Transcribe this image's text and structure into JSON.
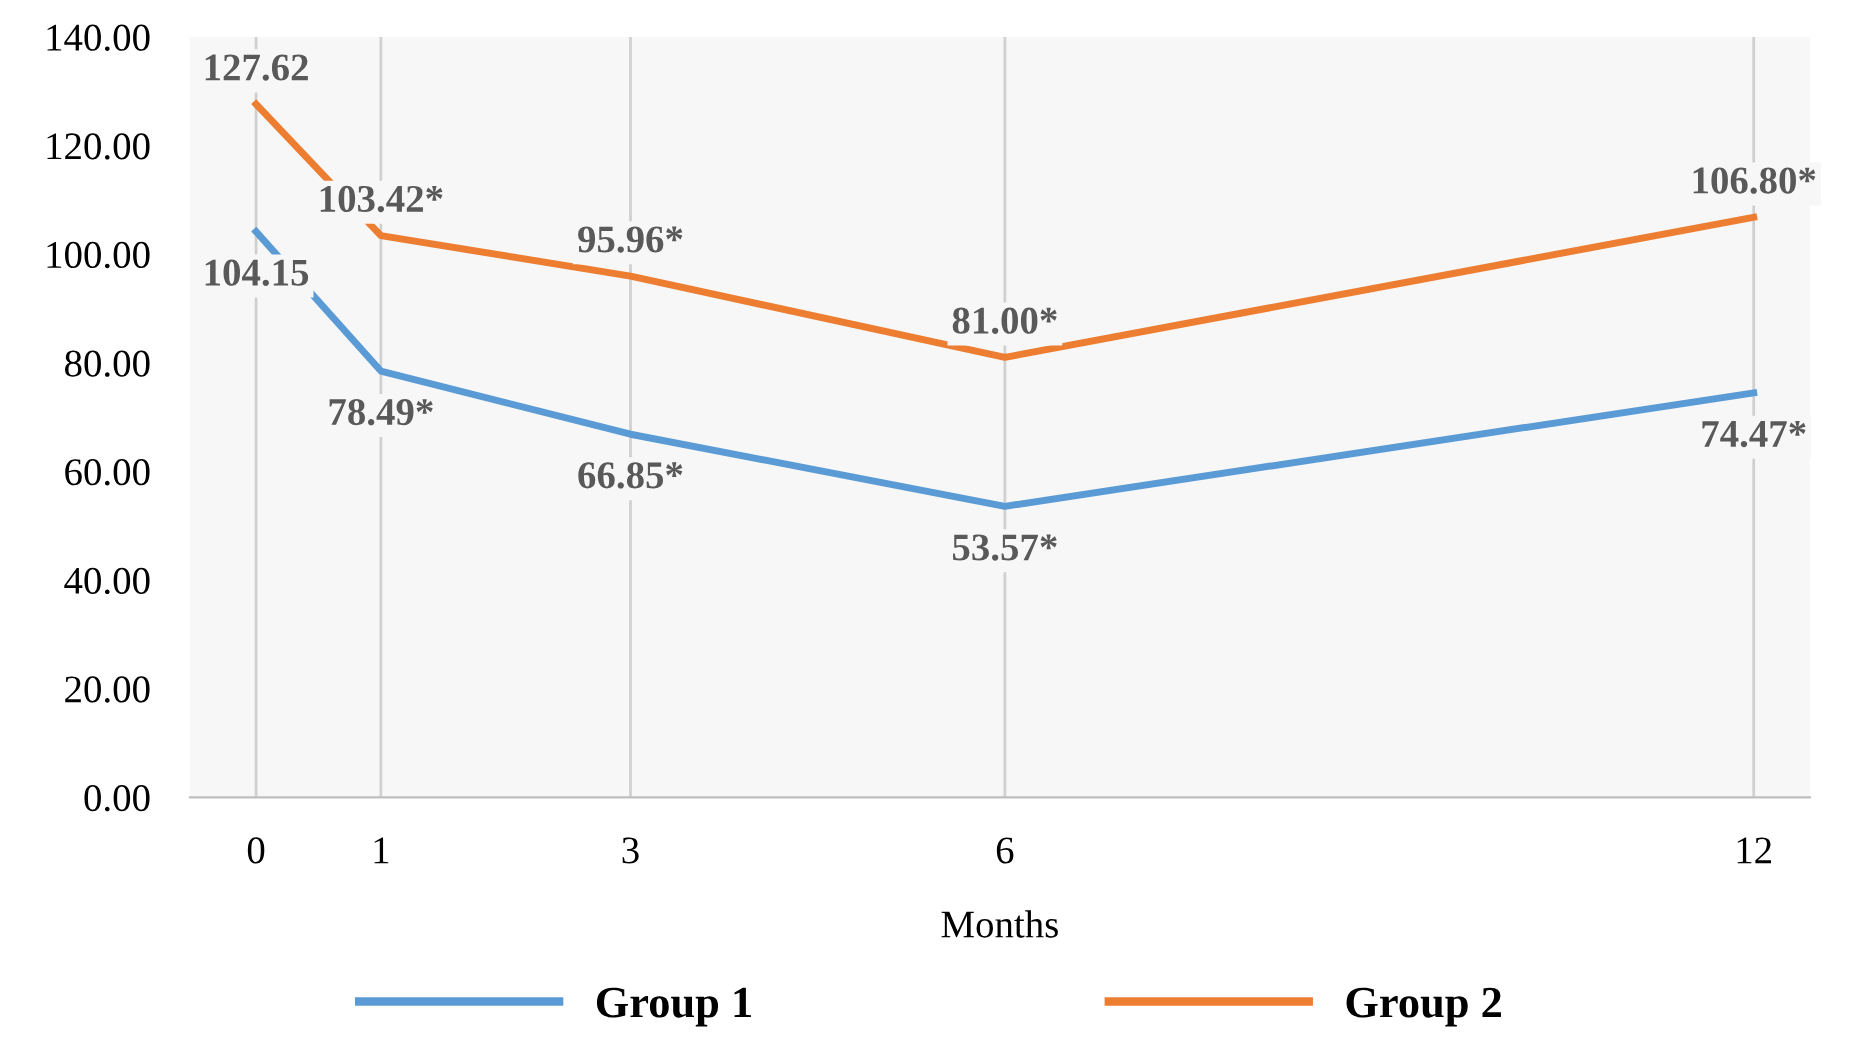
{
  "chart_data": {
    "type": "line",
    "xlabel": "Months",
    "x": [
      0,
      1,
      3,
      6,
      12
    ],
    "series": [
      {
        "name": "Group 1",
        "color": "#5b9bd5",
        "values": [
          104.15,
          78.49,
          66.85,
          53.57,
          74.47
        ],
        "value_labels": [
          "104.15",
          "78.49*",
          "66.85*",
          "53.57*",
          "74.47*"
        ]
      },
      {
        "name": "Group 2",
        "color": "#ed7d31",
        "values": [
          127.62,
          103.42,
          95.96,
          81.0,
          106.8
        ],
        "value_labels": [
          "127.62",
          "103.42*",
          "95.96*",
          "81.00*",
          "106.80*"
        ]
      }
    ],
    "xlim": [
      -0.53,
      12.45
    ],
    "xticks": [
      0,
      1,
      3,
      6,
      12
    ],
    "ylim": [
      0,
      140
    ],
    "yticks": [
      {
        "value": 0,
        "label": "0.00"
      },
      {
        "value": 20,
        "label": "20.00"
      },
      {
        "value": 40,
        "label": "40.00"
      },
      {
        "value": 60,
        "label": "60.00"
      },
      {
        "value": 80,
        "label": "80.00"
      },
      {
        "value": 100,
        "label": "100.00"
      },
      {
        "value": 120,
        "label": "120.00"
      },
      {
        "value": 140,
        "label": "140.00"
      }
    ],
    "grid": "x",
    "legend": "bottom",
    "marker": "none",
    "line_style": "solid"
  }
}
